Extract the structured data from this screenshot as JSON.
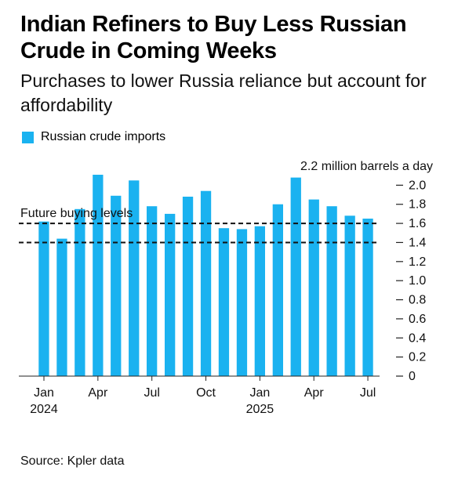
{
  "title": "Indian Refiners to Buy Less Russian Crude in Coming Weeks",
  "subtitle": "Purchases to lower Russia reliance but account for affordability",
  "legend": {
    "label": "Russian crude imports",
    "color": "#1ab2f0"
  },
  "source": "Source: Kpler data",
  "chart_data": {
    "type": "bar",
    "categories": [
      "Jan 2024",
      "Feb 2024",
      "Mar 2024",
      "Apr 2024",
      "May 2024",
      "Jun 2024",
      "Jul 2024",
      "Aug 2024",
      "Sep 2024",
      "Oct 2024",
      "Nov 2024",
      "Dec 2024",
      "Jan 2025",
      "Feb 2025",
      "Mar 2025",
      "Apr 2025",
      "May 2025",
      "Jun 2025",
      "Jul 2025"
    ],
    "series": [
      {
        "name": "Russian crude imports",
        "values": [
          1.62,
          1.44,
          1.75,
          2.11,
          1.89,
          2.05,
          1.78,
          1.7,
          1.88,
          1.94,
          1.55,
          1.54,
          1.57,
          1.8,
          2.08,
          1.85,
          1.78,
          1.68,
          1.65
        ],
        "color": "#1ab2f0"
      }
    ],
    "x_tick_labels": [
      {
        "index": 0,
        "label": "Jan",
        "sublabel": "2024"
      },
      {
        "index": 3,
        "label": "Apr",
        "sublabel": ""
      },
      {
        "index": 6,
        "label": "Jul",
        "sublabel": ""
      },
      {
        "index": 9,
        "label": "Oct",
        "sublabel": ""
      },
      {
        "index": 12,
        "label": "Jan",
        "sublabel": "2025"
      },
      {
        "index": 15,
        "label": "Apr",
        "sublabel": ""
      },
      {
        "index": 18,
        "label": "Jul",
        "sublabel": ""
      }
    ],
    "y_ticks": [
      "0",
      "0.2",
      "0.4",
      "0.6",
      "0.8",
      "1.0",
      "1.2",
      "1.4",
      "1.6",
      "1.8",
      "2.0"
    ],
    "ylim": [
      0,
      2.2
    ],
    "y_axis_side": "right",
    "yunit_label": "2.2 million barrels a day",
    "reference_lines": [
      {
        "value": 1.6,
        "style": "dashed",
        "label": "Future buying levels"
      },
      {
        "value": 1.4,
        "style": "dashed",
        "label": ""
      }
    ],
    "grid": false
  }
}
